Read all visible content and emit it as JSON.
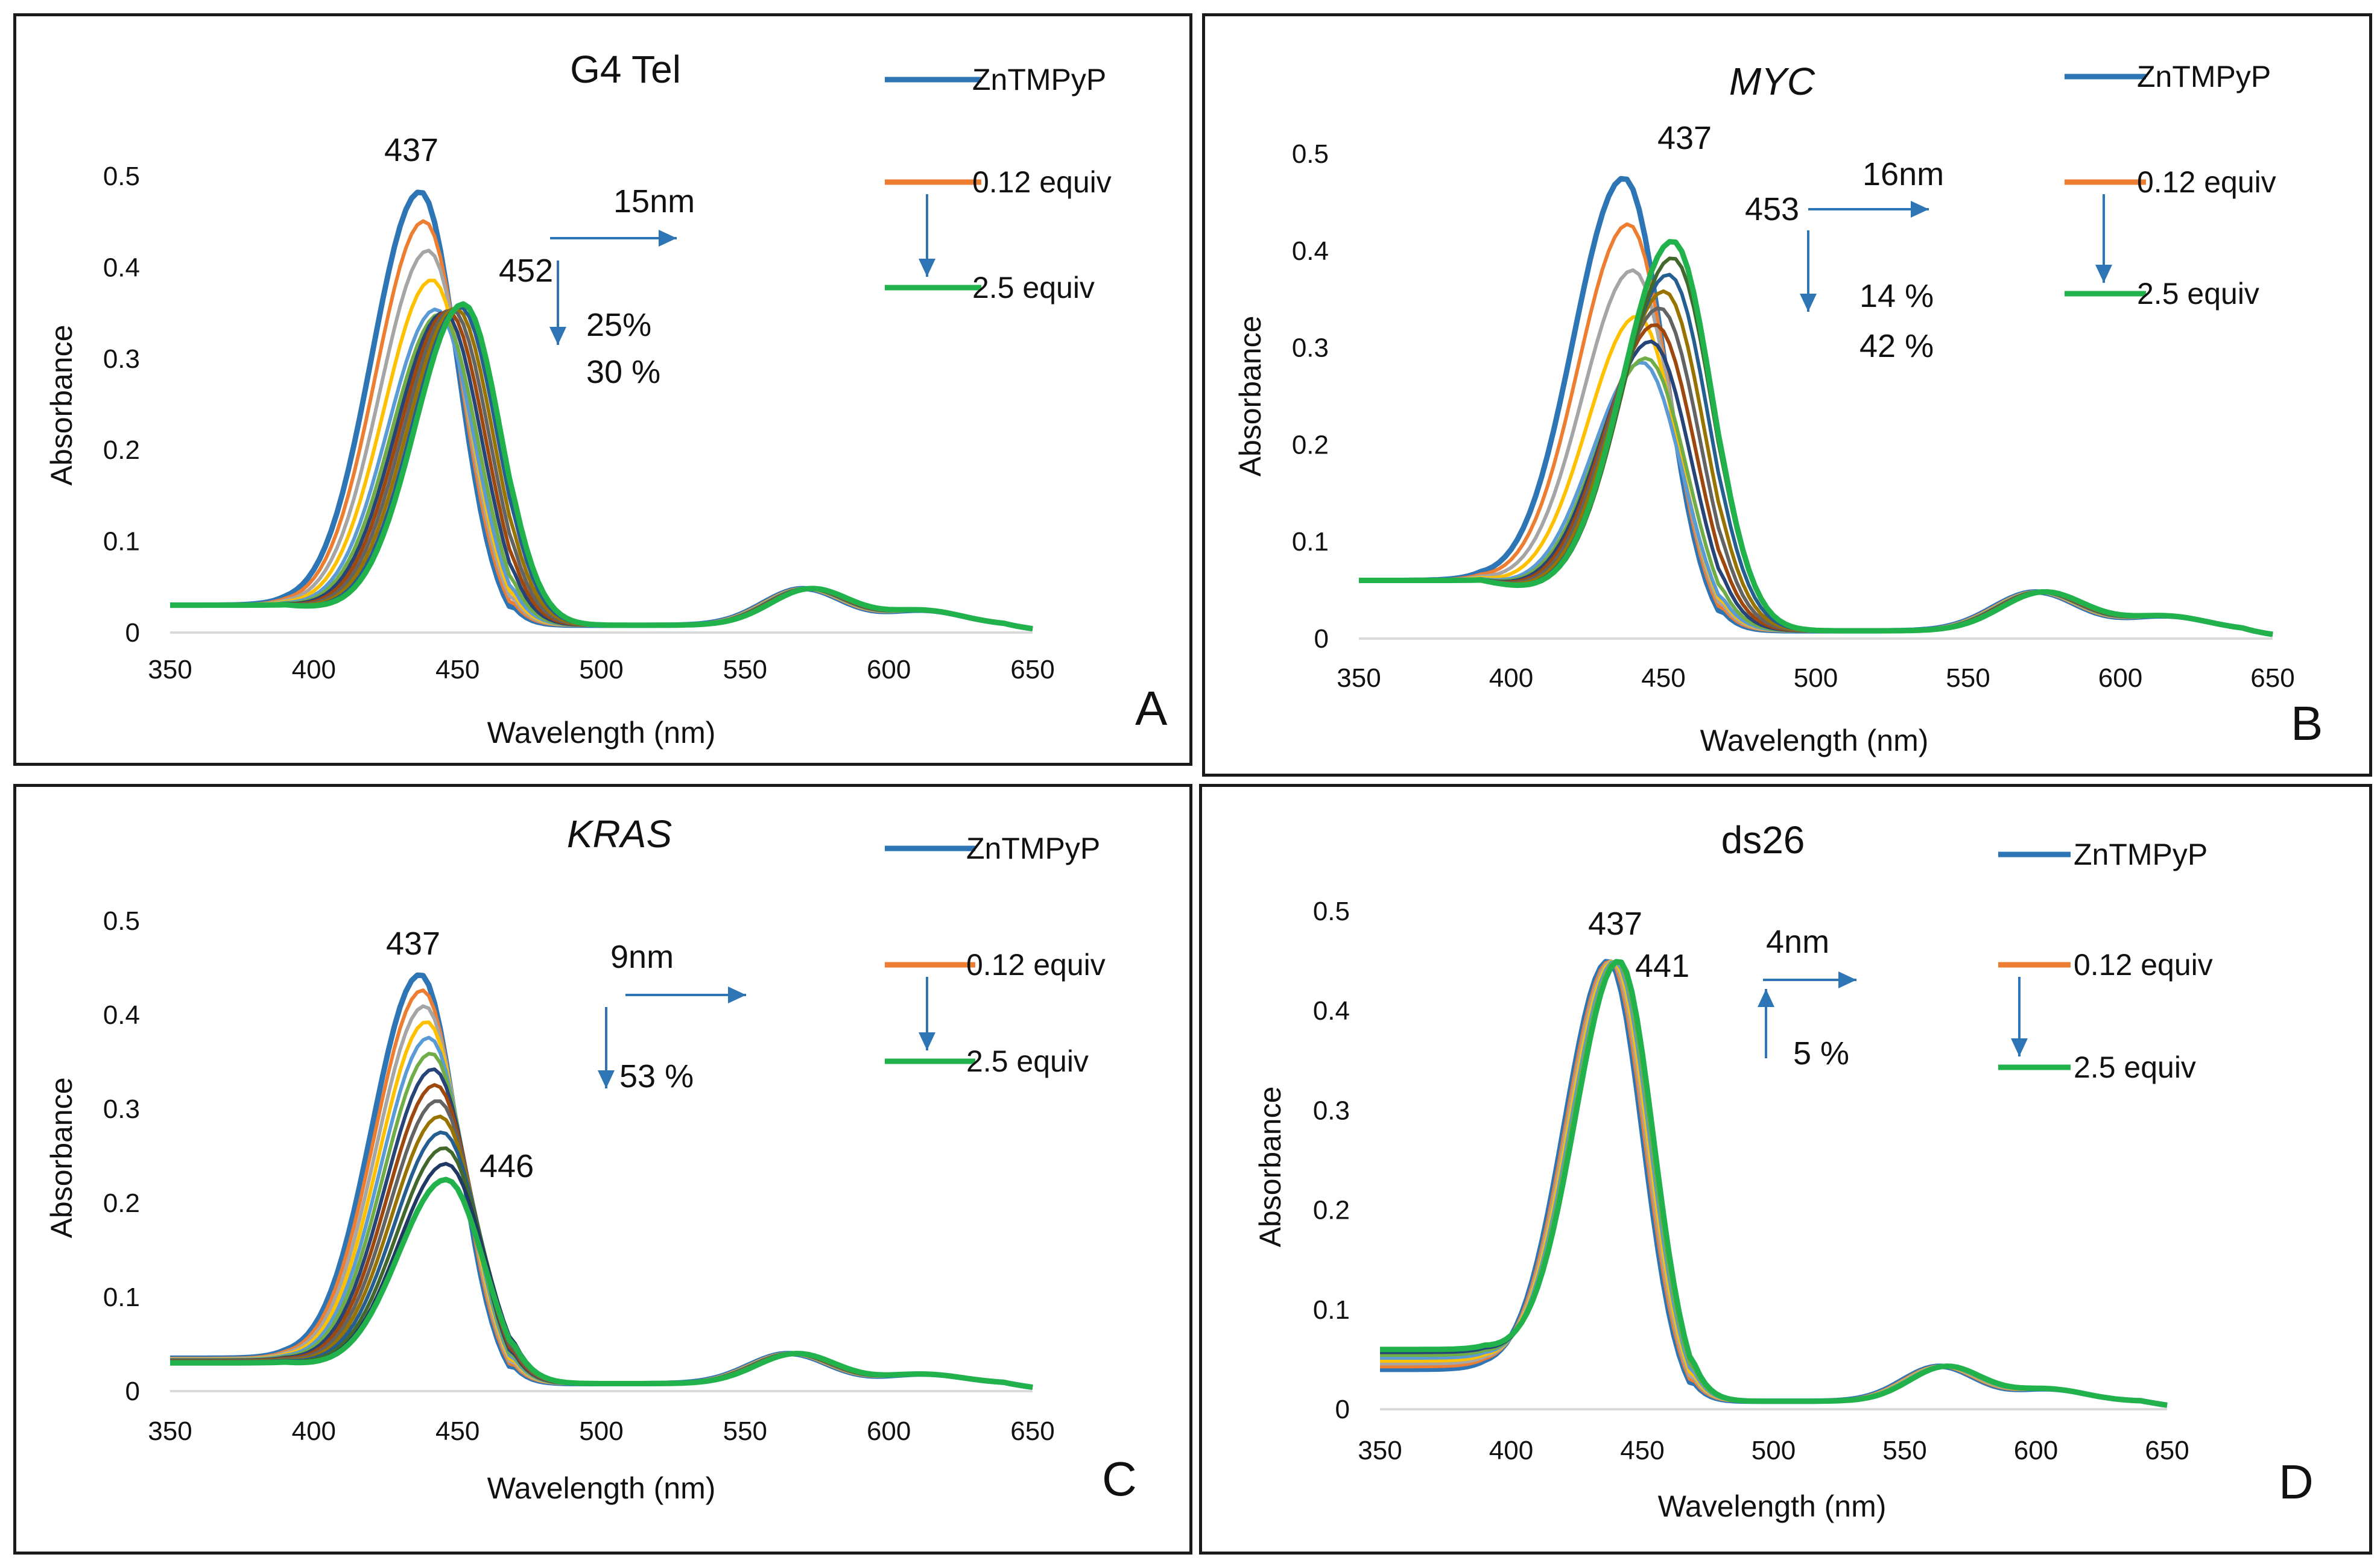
{
  "chart_data": [
    {
      "type": "line",
      "panel_letter": "A",
      "title": "G4 Tel",
      "title_italic": false,
      "xlabel": "Wavelength (nm)",
      "ylabel": "Absorbance",
      "xlim": [
        350,
        650
      ],
      "ylim": [
        0,
        0.5
      ],
      "xticks": [
        "350",
        "400",
        "450",
        "500",
        "550",
        "600",
        "650"
      ],
      "yticks": [
        "0",
        "0.1",
        "0.2",
        "0.3",
        "0.4",
        "0.5"
      ],
      "legend": [
        "ZnTMPyP",
        "0.12 equiv",
        "2.5 equiv"
      ],
      "peak_labels": [
        "437",
        "452"
      ],
      "annotations": [
        "15nm",
        "25%",
        "30 %"
      ],
      "spectra": {
        "start": {
          "peak_x": 437,
          "peak_y": 0.483,
          "shift": 0,
          "baseline": 0.03
        },
        "end": {
          "peak_x": 452,
          "peak_y": 0.36,
          "shift": 15,
          "baseline": 0.03
        },
        "count": 13,
        "q_band": {
          "x": 570,
          "y": 0.04,
          "x2": 612,
          "y2": 0.016
        },
        "mid_ratio": 0.72
      }
    },
    {
      "type": "line",
      "panel_letter": "B",
      "title": "MYC",
      "title_italic": true,
      "xlabel": "Wavelength (nm)",
      "ylabel": "Absorbance",
      "xlim": [
        350,
        650
      ],
      "ylim": [
        0,
        0.5
      ],
      "xticks": [
        "350",
        "400",
        "450",
        "500",
        "550",
        "600",
        "650"
      ],
      "yticks": [
        "0",
        "0.1",
        "0.2",
        "0.3",
        "0.4",
        "0.5"
      ],
      "legend": [
        "ZnTMPyP",
        "0.12 equiv",
        "2.5 equiv"
      ],
      "peak_labels": [
        "437",
        "453"
      ],
      "annotations": [
        "16nm",
        "14 %",
        "42 %"
      ],
      "spectra": {
        "start": {
          "peak_x": 437,
          "peak_y": 0.475,
          "shift": 0,
          "baseline": 0.06
        },
        "end": {
          "peak_x": 453,
          "peak_y": 0.41,
          "shift": 16,
          "baseline": 0.06
        },
        "count": 13,
        "q_band": {
          "x": 572,
          "y": 0.04,
          "x2": 615,
          "y2": 0.015
        },
        "mid_ratio": 0.58
      }
    },
    {
      "type": "line",
      "panel_letter": "C",
      "title": "KRAS",
      "title_italic": true,
      "xlabel": "Wavelength (nm)",
      "ylabel": "Absorbance",
      "xlim": [
        350,
        650
      ],
      "ylim": [
        0,
        0.5
      ],
      "xticks": [
        "350",
        "400",
        "450",
        "500",
        "550",
        "600",
        "650"
      ],
      "yticks": [
        "0",
        "0.1",
        "0.2",
        "0.3",
        "0.4",
        "0.5"
      ],
      "legend": [
        "ZnTMPyP",
        "0.12 equiv",
        "2.5 equiv"
      ],
      "peak_labels": [
        "437",
        "446"
      ],
      "annotations": [
        "9nm",
        "53 %"
      ],
      "spectra": {
        "start": {
          "peak_x": 437,
          "peak_y": 0.443,
          "shift": 0,
          "baseline": 0.035
        },
        "end": {
          "peak_x": 446,
          "peak_y": 0.225,
          "shift": 9,
          "baseline": 0.03
        },
        "count": 14,
        "q_band": {
          "x": 565,
          "y": 0.032,
          "x2": 612,
          "y2": 0.01
        },
        "mid_ratio": 1.0
      }
    },
    {
      "type": "line",
      "panel_letter": "D",
      "title": "ds26",
      "title_italic": false,
      "xlabel": "Wavelength (nm)",
      "ylabel": "Absorbance",
      "xlim": [
        350,
        650
      ],
      "ylim": [
        0,
        0.5
      ],
      "xticks": [
        "350",
        "400",
        "450",
        "500",
        "550",
        "600",
        "650"
      ],
      "yticks": [
        "0",
        "0.1",
        "0.2",
        "0.3",
        "0.4",
        "0.5"
      ],
      "legend": [
        "ZnTMPyP",
        "0.12 equiv",
        "2.5 equiv"
      ],
      "peak_labels": [
        "437",
        "441"
      ],
      "annotations": [
        "4nm",
        "5 %"
      ],
      "spectra": {
        "start": {
          "peak_x": 437,
          "peak_y": 0.45,
          "shift": 0,
          "baseline": 0.04
        },
        "end": {
          "peak_x": 441,
          "peak_y": 0.45,
          "shift": 4,
          "baseline": 0.06
        },
        "count": 8,
        "q_band": {
          "x": 563,
          "y": 0.035,
          "x2": 605,
          "y2": 0.012
        },
        "mid_ratio": 1.0
      }
    }
  ],
  "colors": {
    "series": [
      "#2e75b6",
      "#ed7d31",
      "#a5a5a5",
      "#ffc000",
      "#5b9bd5",
      "#70ad47",
      "#264478",
      "#9e480e",
      "#636363",
      "#997300",
      "#255e91",
      "#43682b",
      "#1f3864",
      "#843c0c"
    ],
    "first": "#2e75b6",
    "second": "#ed7d31",
    "last": "#21b24b",
    "arrow": "#2e75b6",
    "axis": "#d9d9d9",
    "text": "#111111"
  }
}
